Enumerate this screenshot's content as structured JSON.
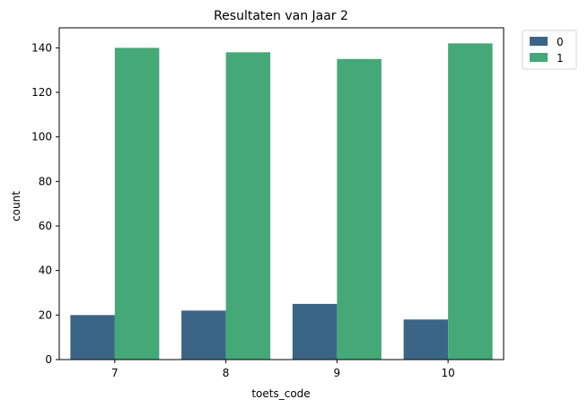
{
  "chart_data": {
    "type": "bar",
    "title": "Resultaten van Jaar 2",
    "xlabel": "toets_code",
    "ylabel": "count",
    "categories": [
      "7",
      "8",
      "9",
      "10"
    ],
    "series": [
      {
        "name": "0",
        "values": [
          20,
          22,
          25,
          18
        ],
        "color": "#3b6586"
      },
      {
        "name": "1",
        "values": [
          140,
          138,
          135,
          142
        ],
        "color": "#44a877"
      }
    ],
    "ylim": [
      0,
      149
    ],
    "yticks": [
      0,
      20,
      40,
      60,
      80,
      100,
      120,
      140
    ],
    "grid": false,
    "legend_position": "outside-top-right"
  }
}
